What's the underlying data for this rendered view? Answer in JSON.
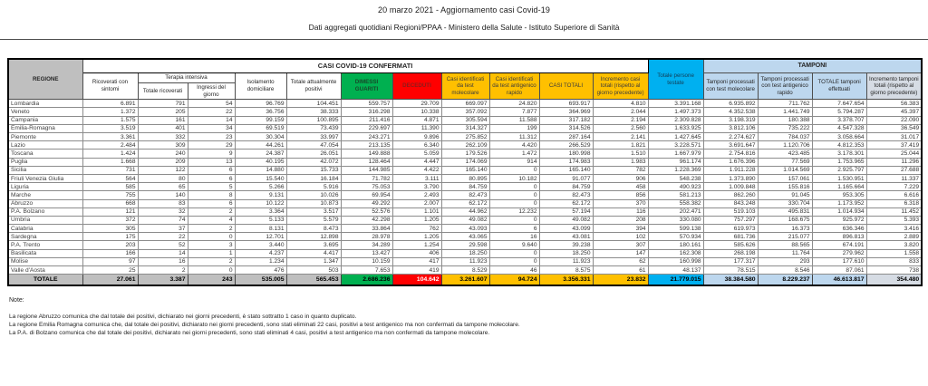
{
  "header": {
    "title": "20 marzo 2021 - Aggiornamento casi Covid-19",
    "subtitle": "Dati aggregati quotidiani Regioni/PPAA - Ministero della Salute - Istituto Superiore di Sanità"
  },
  "colors": {
    "green": "#00b050",
    "red": "#ff0000",
    "yellow": "#ffc000",
    "cyan": "#00b0f0",
    "light_blue": "#bdd7ee",
    "gray": "#bfbfbf"
  },
  "table": {
    "banner": "CASI COVID-19 CONFERMATI",
    "tamponi_banner": "TAMPONI",
    "headers": {
      "regione": "REGIONE",
      "ricoverati": "Ricoverati con sintomi",
      "terapia_intensiva": "Terapia intensiva",
      "ti_totale": "Totale ricoverati",
      "ti_ingressi": "Ingressi del giorno",
      "isolamento": "Isolamento domiciliare",
      "positivi": "Totale attualmente positivi",
      "guariti": "DIMESSI GUARITI",
      "deceduti": "DECEDUTI",
      "casi_molecolare": "Casi identificati da test molecolare",
      "casi_antigenico": "Casi identificati da test antigenico rapido",
      "casi_totali": "CASI TOTALI",
      "incremento_casi": "Incremento casi totali (rispetto al giorno precedente)",
      "persone_testate": "Totale persone testate",
      "tamponi_molecolare": "Tamponi processati con test molecolare",
      "tamponi_antigenico": "Tamponi processati con test antigenico rapido",
      "tamponi_totale": "TOTALE tamponi effettuati",
      "incremento_tamponi": "Incremento tamponi totali (rispetto al giorno precedente)"
    },
    "rows": [
      [
        "Lombardia",
        "6.891",
        "791",
        "54",
        "96.769",
        "104.451",
        "559.757",
        "29.709",
        "669.097",
        "24.820",
        "693.917",
        "4.810",
        "3.391.168",
        "6.935.892",
        "711.762",
        "7.647.654",
        "56.383"
      ],
      [
        "Veneto",
        "1.372",
        "205",
        "22",
        "36.756",
        "38.333",
        "316.298",
        "10.338",
        "357.092",
        "7.877",
        "364.969",
        "2.044",
        "1.497.373",
        "4.352.538",
        "1.441.749",
        "5.794.287",
        "45.397"
      ],
      [
        "Campania",
        "1.575",
        "161",
        "14",
        "99.159",
        "100.895",
        "211.416",
        "4.871",
        "305.594",
        "11.588",
        "317.182",
        "2.194",
        "2.309.828",
        "3.198.319",
        "180.388",
        "3.378.707",
        "22.090"
      ],
      [
        "Emilia-Romagna",
        "3.519",
        "401",
        "34",
        "69.519",
        "73.439",
        "229.697",
        "11.390",
        "314.327",
        "199",
        "314.526",
        "2.560",
        "1.633.925",
        "3.812.106",
        "735.222",
        "4.547.328",
        "36.549"
      ],
      [
        "Piemonte",
        "3.361",
        "332",
        "23",
        "30.304",
        "33.997",
        "243.271",
        "9.896",
        "275.852",
        "11.312",
        "287.164",
        "2.141",
        "1.427.645",
        "2.274.627",
        "784.037",
        "3.058.664",
        "31.017"
      ],
      [
        "Lazio",
        "2.484",
        "309",
        "29",
        "44.261",
        "47.054",
        "213.135",
        "6.340",
        "262.109",
        "4.420",
        "266.529",
        "1.821",
        "3.228.571",
        "3.691.647",
        "1.120.706",
        "4.812.353",
        "37.419"
      ],
      [
        "Toscana",
        "1.424",
        "240",
        "9",
        "24.387",
        "26.051",
        "149.888",
        "5.059",
        "179.526",
        "1.472",
        "180.998",
        "1.510",
        "1.667.979",
        "2.754.816",
        "423.485",
        "3.178.301",
        "25.044"
      ],
      [
        "Puglia",
        "1.668",
        "209",
        "13",
        "40.195",
        "42.072",
        "128.464",
        "4.447",
        "174.069",
        "914",
        "174.983",
        "1.983",
        "961.174",
        "1.676.396",
        "77.569",
        "1.753.965",
        "11.296"
      ],
      [
        "Sicilia",
        "731",
        "122",
        "6",
        "14.880",
        "15.733",
        "144.985",
        "4.422",
        "165.140",
        "0",
        "165.140",
        "782",
        "1.228.369",
        "1.911.228",
        "1.014.569",
        "2.925.797",
        "27.688"
      ],
      [
        "Friuli Venezia Giulia",
        "564",
        "80",
        "6",
        "15.540",
        "16.184",
        "71.782",
        "3.111",
        "80.895",
        "10.182",
        "91.077",
        "906",
        "548.238",
        "1.373.890",
        "157.061",
        "1.530.951",
        "11.337"
      ],
      [
        "Liguria",
        "585",
        "65",
        "5",
        "5.266",
        "5.916",
        "75.053",
        "3.790",
        "84.759",
        "0",
        "84.759",
        "458",
        "490.923",
        "1.009.848",
        "155.816",
        "1.165.664",
        "7.229"
      ],
      [
        "Marche",
        "755",
        "140",
        "8",
        "9.131",
        "10.026",
        "69.954",
        "2.493",
        "82.473",
        "0",
        "82.473",
        "856",
        "581.213",
        "862.260",
        "91.045",
        "953.305",
        "6.616"
      ],
      [
        "Abruzzo",
        "668",
        "83",
        "6",
        "10.122",
        "10.873",
        "49.292",
        "2.007",
        "62.172",
        "0",
        "62.172",
        "370",
        "558.382",
        "843.248",
        "330.704",
        "1.173.952",
        "6.318"
      ],
      [
        "P.A. Bolzano",
        "121",
        "32",
        "2",
        "3.364",
        "3.517",
        "52.576",
        "1.101",
        "44.962",
        "12.232",
        "57.194",
        "116",
        "202.471",
        "519.103",
        "495.831",
        "1.014.934",
        "11.452"
      ],
      [
        "Umbria",
        "372",
        "74",
        "4",
        "5.133",
        "5.579",
        "42.298",
        "1.205",
        "49.082",
        "0",
        "49.082",
        "208",
        "330.080",
        "757.297",
        "168.675",
        "925.972",
        "5.393"
      ],
      [
        "Calabria",
        "305",
        "37",
        "2",
        "8.131",
        "8.473",
        "33.864",
        "762",
        "43.093",
        "6",
        "43.099",
        "394",
        "599.138",
        "619.973",
        "16.373",
        "636.346",
        "3.416"
      ],
      [
        "Sardegna",
        "175",
        "22",
        "0",
        "12.701",
        "12.898",
        "28.978",
        "1.205",
        "43.065",
        "16",
        "43.081",
        "102",
        "570.934",
        "681.736",
        "215.077",
        "896.813",
        "2.889"
      ],
      [
        "P.A. Trento",
        "203",
        "52",
        "3",
        "3.440",
        "3.695",
        "34.289",
        "1.254",
        "29.598",
        "9.640",
        "39.238",
        "307",
        "180.161",
        "585.626",
        "88.565",
        "674.191",
        "3.820"
      ],
      [
        "Basilicata",
        "166",
        "14",
        "1",
        "4.237",
        "4.417",
        "13.427",
        "406",
        "18.250",
        "0",
        "18.250",
        "147",
        "162.308",
        "268.198",
        "11.764",
        "279.962",
        "1.558"
      ],
      [
        "Molise",
        "97",
        "16",
        "2",
        "1.234",
        "1.347",
        "10.159",
        "417",
        "11.923",
        "0",
        "11.923",
        "62",
        "160.998",
        "177.317",
        "293",
        "177.610",
        "833"
      ],
      [
        "Valle d'Aosta",
        "25",
        "2",
        "0",
        "476",
        "503",
        "7.653",
        "419",
        "8.529",
        "46",
        "8.575",
        "61",
        "48.137",
        "78.515",
        "8.546",
        "87.061",
        "738"
      ]
    ],
    "total": [
      "TOTALE",
      "27.061",
      "3.387",
      "243",
      "535.005",
      "565.453",
      "2.686.236",
      "104.642",
      "3.261.607",
      "94.724",
      "3.356.331",
      "23.832",
      "21.779.015",
      "38.384.580",
      "8.229.237",
      "46.613.817",
      "354.480"
    ]
  },
  "notes": {
    "title": "Note:",
    "lines": [
      "La regione Abruzzo comunica che dal totale dei positivi, dichiarato nei giorni precedenti, è stato sottratto 1 caso in quanto duplicato.",
      "La regione Emilia Romagna comunica che, dal totale dei positivi, dichiarato nei giorni precedenti, sono stati eliminati 22 casi, positivi a test antigenico ma non confermati da tampone molecolare.",
      "La P.A. di Bolzano comunica che dal totale dei positivi, dichiarato nei giorni precedenti, sono stati eliminati 4 casi, positivi a test antigenico ma non confermati da tampone molecolare."
    ]
  }
}
